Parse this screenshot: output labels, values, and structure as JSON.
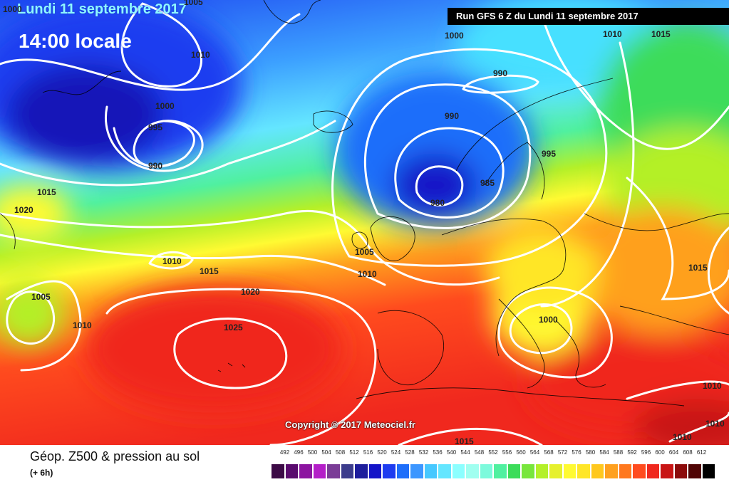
{
  "map": {
    "date_line": "Lundi 11 septembre 2017",
    "time_line": "14:00 locale",
    "run_line": "Run GFS 6 Z du Lundi 11 septembre 2017",
    "copyright": "Copyright © 2017 Meteociel.fr",
    "isobar_labels": [
      "1000",
      "1005",
      "1010",
      "1000",
      "995",
      "990",
      "1015",
      "1020",
      "1010",
      "1015",
      "1020",
      "1005",
      "1010",
      "1025",
      "1000",
      "990",
      "990",
      "995",
      "985",
      "980",
      "1005",
      "1010",
      "1010",
      "1015",
      "1015",
      "1000",
      "1010",
      "1010",
      "1010",
      "1015"
    ]
  },
  "legend": {
    "product": "Géop. Z500 & pression au sol",
    "lead": "(+ 6h)",
    "ticks": [
      "492",
      "496",
      "500",
      "504",
      "508",
      "512",
      "516",
      "520",
      "524",
      "528",
      "532",
      "536",
      "540",
      "544",
      "548",
      "552",
      "556",
      "560",
      "564",
      "568",
      "572",
      "576",
      "580",
      "584",
      "588",
      "592",
      "596",
      "600",
      "604",
      "608",
      "612"
    ],
    "colors": [
      "#3c0a46",
      "#5a0a6e",
      "#8c14a0",
      "#b41ec8",
      "#7a3c96",
      "#3c3c8c",
      "#1e1e9c",
      "#1414c8",
      "#1e3cf0",
      "#1e6efa",
      "#3c96ff",
      "#46c8ff",
      "#64e6ff",
      "#8cffff",
      "#a0fff0",
      "#7dfadc",
      "#50f0a0",
      "#3cdc5a",
      "#78e63c",
      "#b4f028",
      "#e6f02d",
      "#fffa32",
      "#ffe628",
      "#ffc81e",
      "#ffa01e",
      "#ff781e",
      "#ff4b1e",
      "#f0281e",
      "#c81414",
      "#8c0a0a",
      "#500505",
      "#000000"
    ]
  }
}
